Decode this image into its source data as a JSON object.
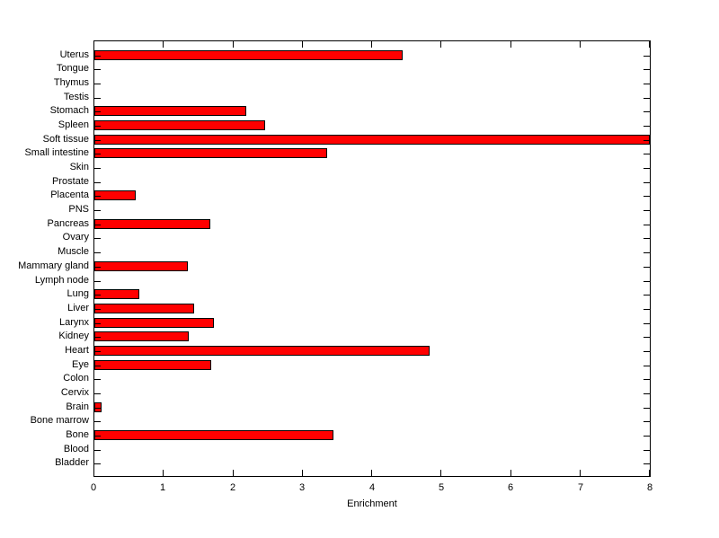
{
  "chart_data": {
    "type": "bar",
    "orientation": "horizontal",
    "title": "",
    "xlabel": "Enrichment",
    "ylabel": "",
    "categories": [
      "Uterus",
      "Tongue",
      "Thymus",
      "Testis",
      "Stomach",
      "Spleen",
      "Soft tissue",
      "Small intestine",
      "Skin",
      "Prostate",
      "Placenta",
      "PNS",
      "Pancreas",
      "Ovary",
      "Muscle",
      "Mammary gland",
      "Lymph node",
      "Lung",
      "Liver",
      "Larynx",
      "Kidney",
      "Heart",
      "Eye",
      "Colon",
      "Cervix",
      "Brain",
      "Bone marrow",
      "Bone",
      "Blood",
      "Bladder"
    ],
    "values": [
      4.44,
      0,
      0,
      0,
      2.19,
      2.46,
      8.0,
      3.35,
      0,
      0,
      0.6,
      0,
      1.67,
      0,
      0,
      1.35,
      0,
      0.65,
      1.44,
      1.72,
      1.36,
      4.83,
      1.68,
      0,
      0,
      0.1,
      0,
      3.44,
      0,
      0
    ],
    "xlim": [
      0,
      8
    ],
    "xtick_labels": [
      "0",
      "1",
      "2",
      "3",
      "4",
      "5",
      "6",
      "7",
      "8"
    ],
    "grid": false,
    "legend": null,
    "bar_color": "#ff0000",
    "bar_edge_color": "#000000",
    "axis_color": "#000000",
    "background_color": "#ffffff",
    "tick_direction": "in"
  }
}
